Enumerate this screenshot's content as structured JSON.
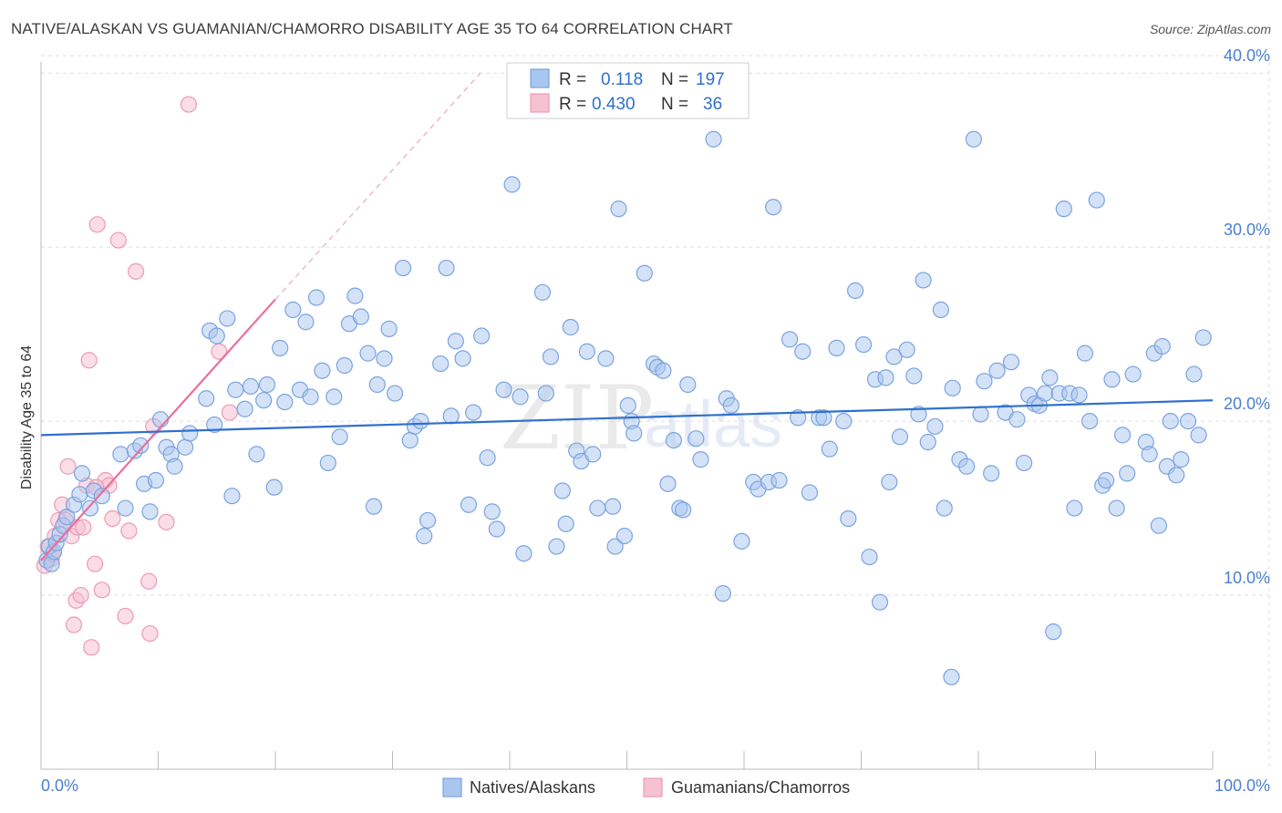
{
  "title": "NATIVE/ALASKAN VS GUAMANIAN/CHAMORRO DISABILITY AGE 35 TO 64 CORRELATION CHART",
  "source": "Source: ZipAtlas.com",
  "watermark": {
    "zip": "ZIP",
    "atlas": "atlas"
  },
  "colors": {
    "blue_fill": "#a9c6f0",
    "blue_stroke": "#7aa3e0",
    "blue_line": "#2f6fce",
    "pink_fill": "#f6c1d1",
    "pink_stroke": "#ee9ab3",
    "pink_line": "#e8709a",
    "grid": "#dddddd",
    "tick_text": "#4a7fd0"
  },
  "legend": {
    "r_label": "R =",
    "n_label": "N =",
    "series": [
      {
        "r": "0.118",
        "n": "197"
      },
      {
        "r": "0.430",
        "n": "36"
      }
    ]
  },
  "bottom_legend": [
    {
      "label": "Natives/Alaskans"
    },
    {
      "label": "Guamanians/Chamorros"
    }
  ],
  "chart_data": {
    "type": "scatter",
    "title": "NATIVE/ALASKAN VS GUAMANIAN/CHAMORRO DISABILITY AGE 35 TO 64 CORRELATION CHART",
    "xlabel": "",
    "ylabel": "Disability Age 35 to 64",
    "xlim": [
      0,
      100
    ],
    "ylim": [
      0,
      42
    ],
    "x_tick_labels": [
      "0.0%",
      "100.0%"
    ],
    "y_ticks": [
      10,
      20,
      30,
      40
    ],
    "y_tick_labels": [
      "10.0%",
      "20.0%",
      "30.0%",
      "40.0%"
    ],
    "grid": true,
    "legend_placement": "top-center",
    "series": [
      {
        "name": "Natives/Alaskans",
        "color": "#a9c6f0",
        "trend": {
          "x": [
            0,
            100
          ],
          "y": [
            19.2,
            21.2
          ]
        },
        "points": [
          [
            0.5,
            12.0
          ],
          [
            0.7,
            12.8
          ],
          [
            0.9,
            11.8
          ],
          [
            1.1,
            12.5
          ],
          [
            1.3,
            13.0
          ],
          [
            1.6,
            13.5
          ],
          [
            1.9,
            14.0
          ],
          [
            2.2,
            14.5
          ],
          [
            2.8,
            15.2
          ],
          [
            3.3,
            15.8
          ],
          [
            3.5,
            17.0
          ],
          [
            4.2,
            15.0
          ],
          [
            4.5,
            16.0
          ],
          [
            5.2,
            15.7
          ],
          [
            6.8,
            18.1
          ],
          [
            7.2,
            15.0
          ],
          [
            8.0,
            18.3
          ],
          [
            8.5,
            18.6
          ],
          [
            8.8,
            16.4
          ],
          [
            9.3,
            14.8
          ],
          [
            9.8,
            16.6
          ],
          [
            10.2,
            20.1
          ],
          [
            10.7,
            18.5
          ],
          [
            11.1,
            18.1
          ],
          [
            11.4,
            17.4
          ],
          [
            12.3,
            18.5
          ],
          [
            12.7,
            19.3
          ],
          [
            14.1,
            21.3
          ],
          [
            14.4,
            25.2
          ],
          [
            14.8,
            19.8
          ],
          [
            15.0,
            24.9
          ],
          [
            15.9,
            25.9
          ],
          [
            16.3,
            15.7
          ],
          [
            16.6,
            21.8
          ],
          [
            17.4,
            20.7
          ],
          [
            17.9,
            22.0
          ],
          [
            18.4,
            18.1
          ],
          [
            19.0,
            21.2
          ],
          [
            19.3,
            22.1
          ],
          [
            19.9,
            16.2
          ],
          [
            20.4,
            24.2
          ],
          [
            20.8,
            21.1
          ],
          [
            21.5,
            26.4
          ],
          [
            22.1,
            21.8
          ],
          [
            22.6,
            25.7
          ],
          [
            23.0,
            21.4
          ],
          [
            23.5,
            27.1
          ],
          [
            24.0,
            22.9
          ],
          [
            24.5,
            17.6
          ],
          [
            25.0,
            21.4
          ],
          [
            25.5,
            19.1
          ],
          [
            25.9,
            23.2
          ],
          [
            26.3,
            25.6
          ],
          [
            26.8,
            27.2
          ],
          [
            27.3,
            26.0
          ],
          [
            27.9,
            23.9
          ],
          [
            28.4,
            15.1
          ],
          [
            28.7,
            22.1
          ],
          [
            29.3,
            23.6
          ],
          [
            29.7,
            25.3
          ],
          [
            30.2,
            21.6
          ],
          [
            30.9,
            28.8
          ],
          [
            31.5,
            18.9
          ],
          [
            31.9,
            19.7
          ],
          [
            32.4,
            20.0
          ],
          [
            32.7,
            13.4
          ],
          [
            33.0,
            14.3
          ],
          [
            34.1,
            23.3
          ],
          [
            34.6,
            28.8
          ],
          [
            35.0,
            20.3
          ],
          [
            35.4,
            24.6
          ],
          [
            36.0,
            23.6
          ],
          [
            36.5,
            15.2
          ],
          [
            36.9,
            20.5
          ],
          [
            37.6,
            24.9
          ],
          [
            38.1,
            17.9
          ],
          [
            38.5,
            14.8
          ],
          [
            38.9,
            13.8
          ],
          [
            39.5,
            21.8
          ],
          [
            40.2,
            33.6
          ],
          [
            40.9,
            21.4
          ],
          [
            41.2,
            12.4
          ],
          [
            42.8,
            27.4
          ],
          [
            43.1,
            21.6
          ],
          [
            43.5,
            23.7
          ],
          [
            44.0,
            12.8
          ],
          [
            44.5,
            16.0
          ],
          [
            44.8,
            14.1
          ],
          [
            45.2,
            25.4
          ],
          [
            45.7,
            18.3
          ],
          [
            46.1,
            17.7
          ],
          [
            46.6,
            24.0
          ],
          [
            47.1,
            18.1
          ],
          [
            47.5,
            15.0
          ],
          [
            48.2,
            23.6
          ],
          [
            48.8,
            15.1
          ],
          [
            49.0,
            12.8
          ],
          [
            49.3,
            32.2
          ],
          [
            49.8,
            13.4
          ],
          [
            50.1,
            20.9
          ],
          [
            50.4,
            20.0
          ],
          [
            50.6,
            19.3
          ],
          [
            51.5,
            28.5
          ],
          [
            52.3,
            23.3
          ],
          [
            52.6,
            23.1
          ],
          [
            53.1,
            22.9
          ],
          [
            53.5,
            16.4
          ],
          [
            54.0,
            18.9
          ],
          [
            54.5,
            15.0
          ],
          [
            54.8,
            14.9
          ],
          [
            55.2,
            22.1
          ],
          [
            55.9,
            19.0
          ],
          [
            56.3,
            17.8
          ],
          [
            57.4,
            36.2
          ],
          [
            58.2,
            10.1
          ],
          [
            58.5,
            21.3
          ],
          [
            58.9,
            20.9
          ],
          [
            59.8,
            13.1
          ],
          [
            60.8,
            16.5
          ],
          [
            61.2,
            16.1
          ],
          [
            62.1,
            16.5
          ],
          [
            62.5,
            32.3
          ],
          [
            63.0,
            16.6
          ],
          [
            63.9,
            24.7
          ],
          [
            64.6,
            20.2
          ],
          [
            65.0,
            24.0
          ],
          [
            65.6,
            15.9
          ],
          [
            66.4,
            20.2
          ],
          [
            66.8,
            20.2
          ],
          [
            67.3,
            18.4
          ],
          [
            67.9,
            24.2
          ],
          [
            68.5,
            20.0
          ],
          [
            68.9,
            14.4
          ],
          [
            69.5,
            27.5
          ],
          [
            70.2,
            24.4
          ],
          [
            70.7,
            12.2
          ],
          [
            71.2,
            22.4
          ],
          [
            71.6,
            9.6
          ],
          [
            72.1,
            22.5
          ],
          [
            72.4,
            16.5
          ],
          [
            72.8,
            23.7
          ],
          [
            73.3,
            19.1
          ],
          [
            73.9,
            24.1
          ],
          [
            74.5,
            22.6
          ],
          [
            74.9,
            20.4
          ],
          [
            75.3,
            28.1
          ],
          [
            75.7,
            18.8
          ],
          [
            76.3,
            19.7
          ],
          [
            76.8,
            26.4
          ],
          [
            77.1,
            15.0
          ],
          [
            77.8,
            21.9
          ],
          [
            78.4,
            17.8
          ],
          [
            79.0,
            17.4
          ],
          [
            79.6,
            36.2
          ],
          [
            80.2,
            20.4
          ],
          [
            80.5,
            22.3
          ],
          [
            81.1,
            17.0
          ],
          [
            81.6,
            22.9
          ],
          [
            82.3,
            20.5
          ],
          [
            82.8,
            23.4
          ],
          [
            83.3,
            20.1
          ],
          [
            83.9,
            17.6
          ],
          [
            84.3,
            21.5
          ],
          [
            84.8,
            21.0
          ],
          [
            85.2,
            20.9
          ],
          [
            85.7,
            21.6
          ],
          [
            86.1,
            22.5
          ],
          [
            86.4,
            7.9
          ],
          [
            86.9,
            21.6
          ],
          [
            87.3,
            32.2
          ],
          [
            87.8,
            21.6
          ],
          [
            88.2,
            15.0
          ],
          [
            88.6,
            21.5
          ],
          [
            89.1,
            23.9
          ],
          [
            89.5,
            20.0
          ],
          [
            90.1,
            32.7
          ],
          [
            90.6,
            16.3
          ],
          [
            90.9,
            16.6
          ],
          [
            91.4,
            22.4
          ],
          [
            91.8,
            15.0
          ],
          [
            92.3,
            19.2
          ],
          [
            92.7,
            17.0
          ],
          [
            93.2,
            22.7
          ],
          [
            94.3,
            18.8
          ],
          [
            94.6,
            18.1
          ],
          [
            95.0,
            23.9
          ],
          [
            95.4,
            14.0
          ],
          [
            95.7,
            24.3
          ],
          [
            96.1,
            17.4
          ],
          [
            96.4,
            20.0
          ],
          [
            96.9,
            16.9
          ],
          [
            97.3,
            17.8
          ],
          [
            97.9,
            20.0
          ],
          [
            98.4,
            22.7
          ],
          [
            98.8,
            19.2
          ],
          [
            99.2,
            24.8
          ],
          [
            77.7,
            5.3
          ]
        ]
      },
      {
        "name": "Guamanians/Chamorros",
        "color": "#f6c1d1",
        "trend": {
          "x": [
            0,
            20
          ],
          "y": [
            12.0,
            27.0
          ]
        },
        "trend_extension": {
          "x": [
            20,
            37.5
          ],
          "y": [
            27.0,
            40.0
          ]
        },
        "points": [
          [
            0.3,
            11.7
          ],
          [
            0.6,
            12.8
          ],
          [
            0.9,
            12.1
          ],
          [
            1.2,
            13.4
          ],
          [
            1.5,
            14.3
          ],
          [
            1.8,
            15.2
          ],
          [
            2.1,
            14.3
          ],
          [
            2.3,
            17.4
          ],
          [
            2.6,
            13.4
          ],
          [
            2.8,
            8.3
          ],
          [
            3.0,
            9.7
          ],
          [
            3.1,
            13.9
          ],
          [
            3.4,
            10.0
          ],
          [
            3.6,
            13.9
          ],
          [
            3.9,
            16.3
          ],
          [
            4.1,
            23.5
          ],
          [
            4.3,
            7.0
          ],
          [
            4.6,
            11.8
          ],
          [
            4.8,
            31.3
          ],
          [
            5.2,
            10.3
          ],
          [
            5.5,
            16.6
          ],
          [
            5.8,
            16.3
          ],
          [
            6.1,
            14.4
          ],
          [
            6.6,
            30.4
          ],
          [
            7.2,
            8.8
          ],
          [
            7.5,
            13.7
          ],
          [
            8.1,
            28.6
          ],
          [
            9.2,
            10.8
          ],
          [
            9.3,
            7.8
          ],
          [
            9.6,
            19.7
          ],
          [
            10.7,
            14.2
          ],
          [
            12.6,
            38.2
          ],
          [
            15.2,
            24.0
          ],
          [
            16.1,
            20.5
          ],
          [
            4.7,
            16.2
          ],
          [
            1.0,
            12.4
          ]
        ]
      }
    ]
  }
}
